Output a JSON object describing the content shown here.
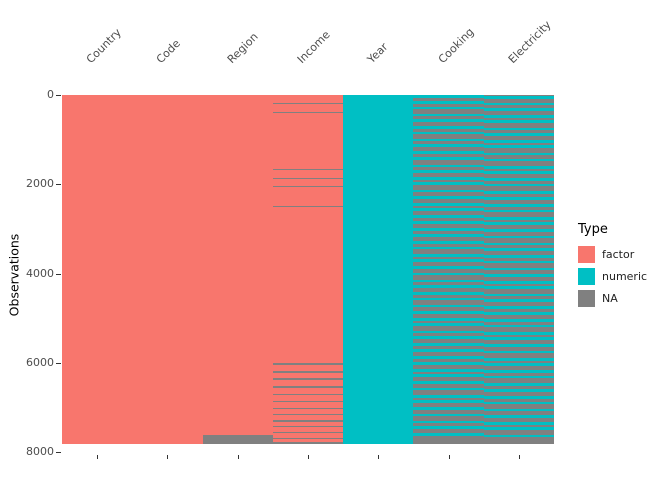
{
  "chart_data": {
    "type": "heatmap",
    "title": "",
    "xlabel": "",
    "ylabel": "Observations",
    "ylim": [
      0,
      8000
    ],
    "yticks": [
      0,
      2000,
      4000,
      6000,
      8000
    ],
    "n_observations": 7820,
    "grid": false,
    "columns": [
      "Country",
      "Code",
      "Region",
      "Income",
      "Year",
      "Cooking",
      "Electricity"
    ],
    "legend": {
      "title": "Type",
      "position": "right",
      "entries": [
        {
          "label": "factor",
          "color": "#F8766D"
        },
        {
          "label": "numeric",
          "color": "#00BFC4"
        },
        {
          "label": "NA",
          "color": "#808080"
        }
      ]
    },
    "columns_spec": [
      {
        "name": "Country",
        "base": "factor",
        "na_ranges": []
      },
      {
        "name": "Code",
        "base": "factor",
        "na_ranges": []
      },
      {
        "name": "Region",
        "base": "factor",
        "na_ranges": [
          [
            7620,
            7820
          ]
        ]
      },
      {
        "name": "Income",
        "base": "factor",
        "na_ranges": [
          [
            170,
            200
          ],
          [
            380,
            410
          ],
          [
            1650,
            1680
          ],
          [
            1850,
            1880
          ],
          [
            2040,
            2070
          ],
          [
            2490,
            2520
          ],
          [
            6010,
            6040
          ],
          [
            6190,
            6220
          ],
          [
            6350,
            6380
          ],
          [
            6530,
            6560
          ],
          [
            6690,
            6720
          ],
          [
            6850,
            6880
          ],
          [
            7010,
            7040
          ],
          [
            7150,
            7180
          ],
          [
            7290,
            7320
          ],
          [
            7420,
            7450
          ],
          [
            7550,
            7580
          ],
          [
            7690,
            7720
          ],
          [
            7780,
            7820
          ]
        ]
      },
      {
        "name": "Year",
        "base": "numeric",
        "na_ranges": []
      },
      {
        "name": "Cooking",
        "base": "numeric",
        "na_ranges": [
          [
            60,
            140
          ],
          [
            200,
            260
          ],
          [
            320,
            420
          ],
          [
            480,
            540
          ],
          [
            600,
            700
          ],
          [
            760,
            820
          ],
          [
            880,
            980
          ],
          [
            1040,
            1100
          ],
          [
            1160,
            1260
          ],
          [
            1320,
            1400
          ],
          [
            1460,
            1560
          ],
          [
            1620,
            1680
          ],
          [
            1740,
            1840
          ],
          [
            1900,
            1960
          ],
          [
            2020,
            2120
          ],
          [
            2180,
            2260
          ],
          [
            2320,
            2420
          ],
          [
            2480,
            2540
          ],
          [
            2600,
            2700
          ],
          [
            2760,
            2820
          ],
          [
            2880,
            2980
          ],
          [
            3040,
            3120
          ],
          [
            3180,
            3280
          ],
          [
            3340,
            3400
          ],
          [
            3460,
            3560
          ],
          [
            3620,
            3680
          ],
          [
            3740,
            3840
          ],
          [
            3900,
            3980
          ],
          [
            4040,
            4140
          ],
          [
            4200,
            4260
          ],
          [
            4320,
            4420
          ],
          [
            4480,
            4540
          ],
          [
            4600,
            4700
          ],
          [
            4760,
            4840
          ],
          [
            4900,
            5000
          ],
          [
            5060,
            5120
          ],
          [
            5180,
            5280
          ],
          [
            5340,
            5400
          ],
          [
            5460,
            5560
          ],
          [
            5620,
            5700
          ],
          [
            5760,
            5860
          ],
          [
            5920,
            5980
          ],
          [
            6040,
            6140
          ],
          [
            6200,
            6260
          ],
          [
            6320,
            6420
          ],
          [
            6480,
            6560
          ],
          [
            6620,
            6720
          ],
          [
            6780,
            6840
          ],
          [
            6900,
            7000
          ],
          [
            7060,
            7140
          ],
          [
            7200,
            7300
          ],
          [
            7360,
            7420
          ],
          [
            7480,
            7580
          ],
          [
            7640,
            7820
          ]
        ]
      },
      {
        "name": "Electricity",
        "base": "numeric",
        "na_ranges": [
          [
            0,
            30
          ],
          [
            90,
            170
          ],
          [
            230,
            290
          ],
          [
            350,
            450
          ],
          [
            510,
            570
          ],
          [
            630,
            730
          ],
          [
            790,
            850
          ],
          [
            910,
            1010
          ],
          [
            1070,
            1130
          ],
          [
            1190,
            1290
          ],
          [
            1350,
            1430
          ],
          [
            1490,
            1590
          ],
          [
            1650,
            1710
          ],
          [
            1770,
            1870
          ],
          [
            1930,
            1990
          ],
          [
            2050,
            2150
          ],
          [
            2210,
            2290
          ],
          [
            2350,
            2450
          ],
          [
            2510,
            2570
          ],
          [
            2630,
            2730
          ],
          [
            2790,
            2850
          ],
          [
            2910,
            3010
          ],
          [
            3070,
            3150
          ],
          [
            3210,
            3310
          ],
          [
            3370,
            3430
          ],
          [
            3490,
            3590
          ],
          [
            3650,
            3710
          ],
          [
            3770,
            3870
          ],
          [
            3930,
            4010
          ],
          [
            4070,
            4170
          ],
          [
            4230,
            4290
          ],
          [
            4350,
            4450
          ],
          [
            4510,
            4570
          ],
          [
            4630,
            4730
          ],
          [
            4790,
            4870
          ],
          [
            4930,
            5030
          ],
          [
            5090,
            5150
          ],
          [
            5210,
            5310
          ],
          [
            5370,
            5430
          ],
          [
            5490,
            5590
          ],
          [
            5650,
            5730
          ],
          [
            5790,
            5890
          ],
          [
            5950,
            6010
          ],
          [
            6070,
            6170
          ],
          [
            6230,
            6290
          ],
          [
            6350,
            6450
          ],
          [
            6510,
            6590
          ],
          [
            6650,
            6750
          ],
          [
            6810,
            6870
          ],
          [
            6930,
            7030
          ],
          [
            7090,
            7170
          ],
          [
            7230,
            7330
          ],
          [
            7390,
            7450
          ],
          [
            7510,
            7610
          ],
          [
            7670,
            7820
          ]
        ]
      }
    ]
  }
}
